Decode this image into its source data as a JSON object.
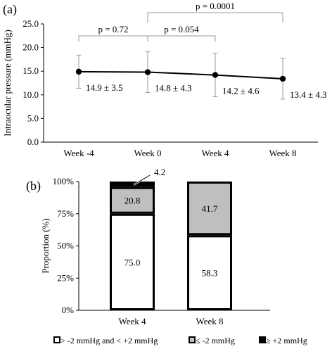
{
  "chart_data": [
    {
      "panel_label": "(a)",
      "type": "line",
      "categories": [
        "Week -4",
        "Week 0",
        "Week 4",
        "Week 8"
      ],
      "values": [
        14.9,
        14.8,
        14.2,
        13.4
      ],
      "errors": [
        3.5,
        4.3,
        4.6,
        4.3
      ],
      "data_labels": [
        "14.9 ± 3.5",
        "14.8 ± 4.3",
        "14.2 ± 4.6",
        "13.4 ± 4.3"
      ],
      "ylabel": "Intraocular pressure (mmHg)",
      "xlabel": "",
      "ylim": [
        0,
        25
      ],
      "yticks": [
        "0.0",
        "5.0",
        "10.0",
        "15.0",
        "20.0",
        "25.0"
      ],
      "grid": false,
      "brackets": [
        {
          "from": "Week -4",
          "to": "Week 0",
          "label": "p = 0.72"
        },
        {
          "from": "Week 0",
          "to": "Week 4",
          "label": "p = 0.054"
        },
        {
          "from": "Week 0",
          "to": "Week 8",
          "label": "p = 0.0001"
        }
      ]
    },
    {
      "panel_label": "(b)",
      "type": "bar",
      "stacked": true,
      "categories": [
        "Week 4",
        "Week 8"
      ],
      "ylabel": "Proportion (%)",
      "ylim": [
        0,
        100
      ],
      "yticks": [
        "0%",
        "25%",
        "50%",
        "75%",
        "100%"
      ],
      "series": [
        {
          "name": "> -2 mmHg and < +2 mmHg",
          "values": [
            75.0,
            58.3
          ],
          "labels": [
            "75.0",
            "58.3"
          ],
          "color": "#ffffff"
        },
        {
          "name": "≤ -2 mmHg",
          "values": [
            20.8,
            41.7
          ],
          "labels": [
            "20.8",
            "41.7"
          ],
          "color": "#bfbfbf"
        },
        {
          "name": "≥ +2 mmHg",
          "values": [
            4.2,
            0
          ],
          "labels": [
            "4.2",
            ""
          ],
          "color": "#000000"
        }
      ],
      "legend": "bottom"
    }
  ]
}
